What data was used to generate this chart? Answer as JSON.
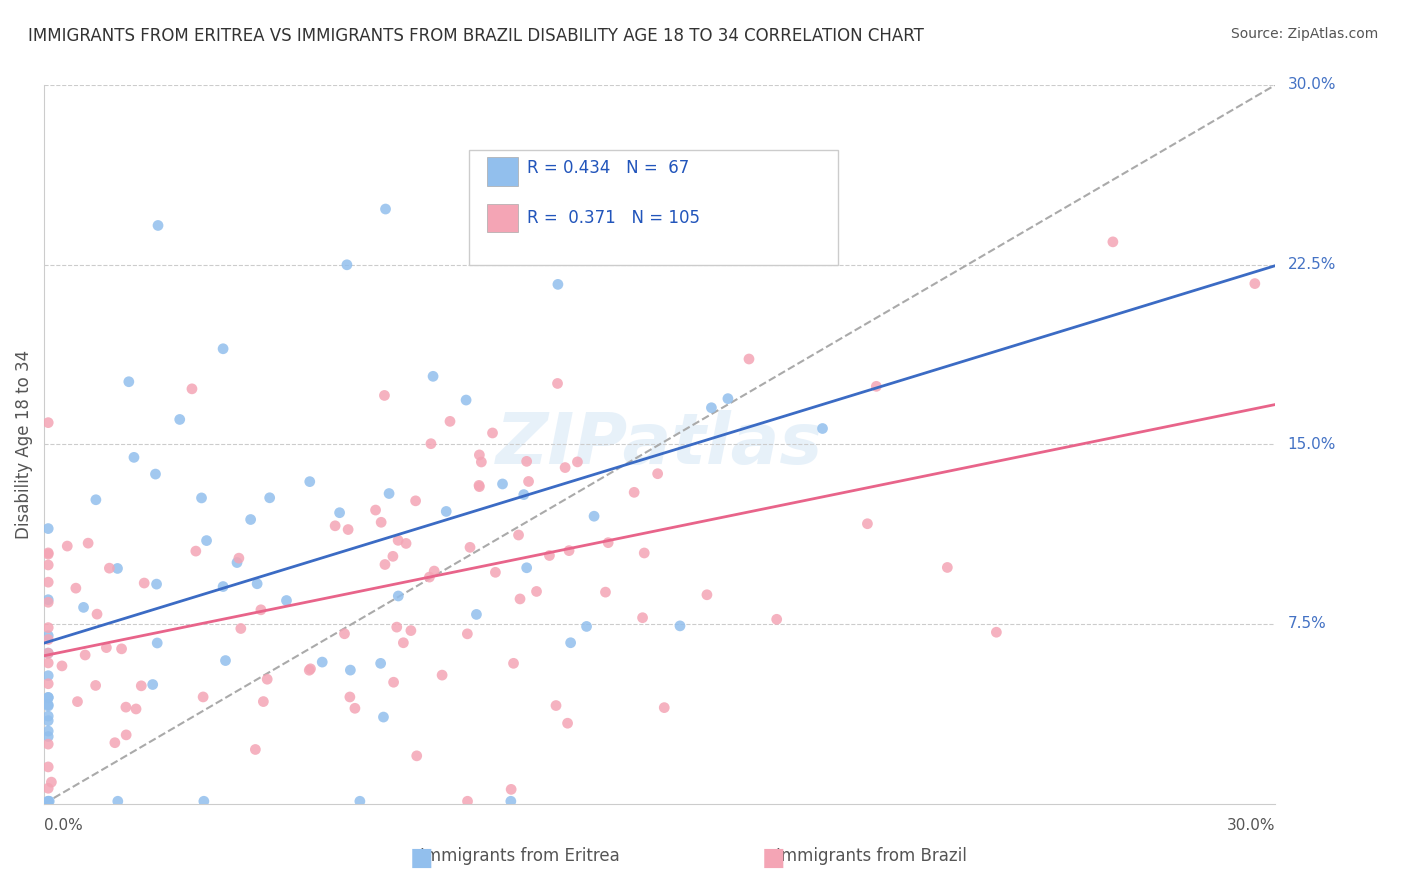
{
  "title": "IMMIGRANTS FROM ERITREA VS IMMIGRANTS FROM BRAZIL DISABILITY AGE 18 TO 34 CORRELATION CHART",
  "source": "Source: ZipAtlas.com",
  "ylabel": "Disability Age 18 to 34",
  "x_label_bottom_left": "0.0%",
  "x_label_bottom_right": "30.0%",
  "y_tick_labels": [
    "7.5%",
    "15.0%",
    "22.5%",
    "30.0%"
  ],
  "y_tick_values": [
    0.075,
    0.15,
    0.225,
    0.3
  ],
  "xlim": [
    0.0,
    0.3
  ],
  "ylim": [
    0.0,
    0.3
  ],
  "eritrea_color": "#92BFED",
  "brazil_color": "#F4A5B5",
  "eritrea_line_color": "#3B6BC4",
  "brazil_line_color": "#E8648A",
  "R_eritrea": 0.434,
  "N_eritrea": 67,
  "R_brazil": 0.371,
  "N_brazil": 105,
  "legend_label_eritrea": "Immigrants from Eritrea",
  "legend_label_brazil": "Immigrants from Brazil",
  "background_color": "#ffffff",
  "grid_color": "#cccccc",
  "title_color": "#333333",
  "watermark_text": "ZIPatlas"
}
